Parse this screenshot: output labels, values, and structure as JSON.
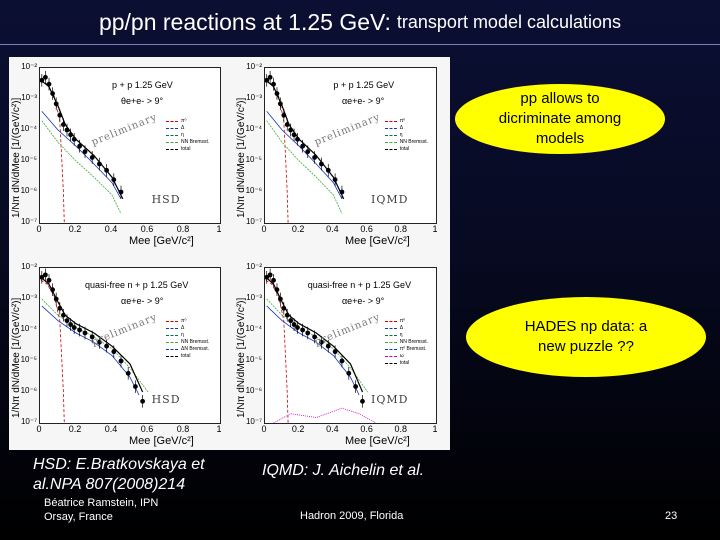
{
  "slide": {
    "title_main": "pp/pn reactions at 1.25 GeV:",
    "title_sub": "transport model calculations",
    "bubble_1": "pp allows to dicriminate among models",
    "bubble_2": "HADES np data: a new puzzle ??",
    "citation_hsd": "HSD: E.Bratkovskaya et al.NPA 807(2008)214",
    "citation_iqmd": "IQMD: J. Aichelin et al.",
    "author": "Béatrice Ramstein, IPN",
    "affiliation": "Orsay, France",
    "conference": "Hadron 2009, Florida",
    "page_number": "23"
  },
  "colors": {
    "background": "#070a22",
    "bubble": "#ffff00",
    "data_points": "#000000",
    "pi0": "#cc0000",
    "delta": "#1133cc",
    "eta": "#007744",
    "nn_brems": "#44aa44",
    "total": "#000000",
    "omega": "#cc00cc"
  },
  "figure": {
    "ylabel": "1/Nπ dN/dMee [1/(GeV/c²)]",
    "y_ticks": [
      "10⁻²",
      "10⁻³",
      "10⁻⁴",
      "10⁻⁵",
      "10⁻⁶",
      "10⁻⁷"
    ],
    "x_ticks": [
      "0",
      "0.2",
      "0.4",
      "0.6",
      "0.8",
      "1"
    ],
    "prelim": "preliminary",
    "panels": [
      {
        "id": "pp-hsd",
        "reaction": "p + p  1.25 GeV",
        "cut": "θe+e- > 9°",
        "model": "HSD",
        "xlabel": "Mee [GeV/c²]",
        "legend": [
          "π⁰",
          "Δ",
          "η",
          "NN Bremsst.",
          "total"
        ]
      },
      {
        "id": "pp-iqmd",
        "reaction": "p + p  1.25 GeV",
        "cut": "αe+e- > 9°",
        "model": "IQMD",
        "xlabel": "Mee [GeV/c²]",
        "legend": [
          "π⁰",
          "Δ",
          "η",
          "NN Bremsst.",
          "total"
        ]
      },
      {
        "id": "np-hsd",
        "reaction": "quasi-free n + p  1.25 GeV",
        "cut": "αe+e- > 9°",
        "model": "HSD",
        "xlabel": "Mee [GeV/c²]",
        "legend": [
          "π⁰",
          "Δ",
          "η",
          "NN Bremsst.",
          "ΔN Bremsst.",
          "total"
        ]
      },
      {
        "id": "np-iqmd",
        "reaction": "quasi-free n + p  1.25 GeV",
        "cut": "αe+e- > 9°",
        "model": "IQMD",
        "xlabel": "Mee [GeV/c²]",
        "legend": [
          "π⁰",
          "Δ",
          "η",
          "NN Bremsst.",
          "π⁰ Bremsst.",
          "ω",
          "total"
        ]
      }
    ]
  },
  "chart_data": [
    {
      "type": "scatter",
      "title": "p + p  1.25 GeV",
      "xlabel": "Mee [GeV/c²]",
      "ylabel": "1/Nπ dN/dMee [1/(GeV/c²)]",
      "xlim": [
        0,
        1
      ],
      "ylim": [
        1e-07,
        0.01
      ],
      "yscale": "log",
      "series": [
        {
          "name": "data",
          "x": [
            0.01,
            0.03,
            0.05,
            0.07,
            0.09,
            0.11,
            0.13,
            0.15,
            0.17,
            0.19,
            0.22,
            0.25,
            0.29,
            0.33,
            0.37,
            0.41,
            0.45
          ],
          "y": [
            0.004,
            0.005,
            0.003,
            0.0015,
            0.0007,
            0.0003,
            0.00015,
            0.0001,
            7e-05,
            5e-05,
            3e-05,
            2e-05,
            1.3e-05,
            8e-06,
            5e-06,
            2.5e-06,
            1e-06
          ]
        }
      ]
    },
    {
      "type": "scatter",
      "title": "p + p  1.25 GeV",
      "xlabel": "Mee [GeV/c²]",
      "ylabel": "1/Nπ dN/dMee [1/(GeV/c²)]",
      "xlim": [
        0,
        1
      ],
      "ylim": [
        1e-07,
        0.01
      ],
      "yscale": "log",
      "series": [
        {
          "name": "data",
          "x": [
            0.01,
            0.03,
            0.05,
            0.07,
            0.09,
            0.11,
            0.13,
            0.15,
            0.17,
            0.19,
            0.22,
            0.25,
            0.29,
            0.33,
            0.37,
            0.41,
            0.45
          ],
          "y": [
            0.004,
            0.005,
            0.003,
            0.0015,
            0.0007,
            0.0003,
            0.00015,
            0.0001,
            7e-05,
            5e-05,
            3e-05,
            2e-05,
            1.3e-05,
            8e-06,
            5e-06,
            2.5e-06,
            1e-06
          ]
        }
      ]
    },
    {
      "type": "scatter",
      "title": "quasi-free n + p  1.25 GeV",
      "xlabel": "Mee [GeV/c²]",
      "ylabel": "1/Nπ dN/dMee [1/(GeV/c²)]",
      "xlim": [
        0,
        1
      ],
      "ylim": [
        1e-07,
        0.01
      ],
      "yscale": "log",
      "series": [
        {
          "name": "data",
          "x": [
            0.01,
            0.03,
            0.05,
            0.07,
            0.09,
            0.11,
            0.13,
            0.15,
            0.17,
            0.19,
            0.22,
            0.25,
            0.29,
            0.33,
            0.37,
            0.41,
            0.45,
            0.49,
            0.53,
            0.57
          ],
          "y": [
            0.005,
            0.006,
            0.004,
            0.002,
            0.001,
            0.0005,
            0.0003,
            0.0002,
            0.00015,
            0.00012,
            0.0001,
            8e-05,
            6e-05,
            4e-05,
            3e-05,
            2e-05,
            1e-05,
            4e-06,
            1.5e-06,
            5e-07
          ]
        }
      ]
    },
    {
      "type": "scatter",
      "title": "quasi-free n + p  1.25 GeV",
      "xlabel": "Mee [GeV/c²]",
      "ylabel": "1/Nπ dN/dMee [1/(GeV/c²)]",
      "xlim": [
        0,
        1
      ],
      "ylim": [
        1e-07,
        0.01
      ],
      "yscale": "log",
      "series": [
        {
          "name": "data",
          "x": [
            0.01,
            0.03,
            0.05,
            0.07,
            0.09,
            0.11,
            0.13,
            0.15,
            0.17,
            0.19,
            0.22,
            0.25,
            0.29,
            0.33,
            0.37,
            0.41,
            0.45,
            0.49,
            0.53,
            0.57
          ],
          "y": [
            0.005,
            0.006,
            0.004,
            0.002,
            0.001,
            0.0005,
            0.0003,
            0.0002,
            0.00015,
            0.00012,
            0.0001,
            8e-05,
            6e-05,
            4e-05,
            3e-05,
            2e-05,
            1e-05,
            4e-06,
            1.5e-06,
            5e-07
          ]
        }
      ]
    }
  ]
}
